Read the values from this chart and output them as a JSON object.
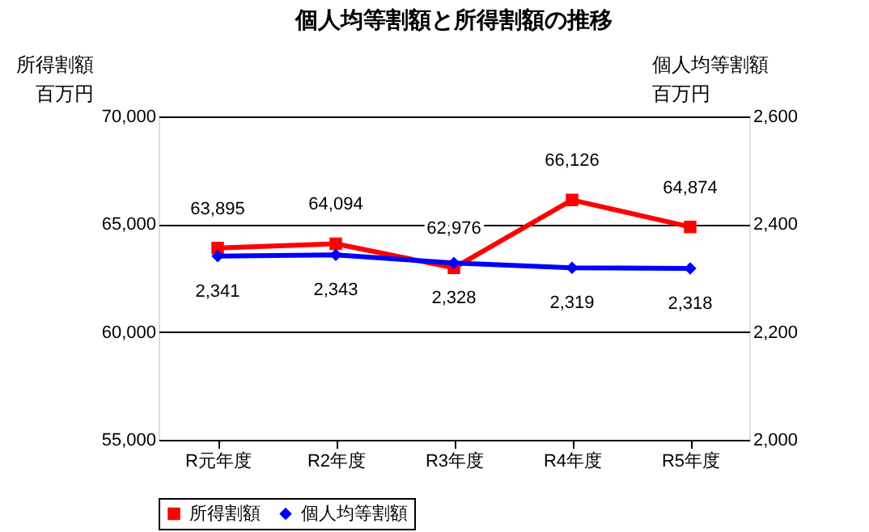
{
  "chart_data": {
    "type": "line",
    "title": "個人均等割額と所得割額の推移",
    "ylabel": "所得割額",
    "y2label": "個人均等割額",
    "annotations": [
      "百万円",
      "百万円"
    ],
    "categories": [
      "R元年度",
      "R2年度",
      "R3年度",
      "R4年度",
      "R5年度"
    ],
    "series": [
      {
        "name": "所得割額",
        "color": "#ff0000",
        "marker": "square",
        "values": [
          63895,
          64094,
          62976,
          66126,
          64874
        ],
        "value_labels": [
          "63,895",
          "64,094",
          "62,976",
          "66,126",
          "64,874"
        ]
      },
      {
        "name": "個人均等割額",
        "color": "#0000ff",
        "marker": "diamond",
        "axis": "y2",
        "values": [
          2341,
          2343,
          2328,
          2319,
          2318
        ],
        "value_labels": [
          "2,341",
          "2,343",
          "2,328",
          "2,319",
          "2,318"
        ]
      }
    ],
    "ylim": [
      55000,
      70000
    ],
    "yticks": [
      {
        "value": 55000,
        "label": "55,000"
      },
      {
        "value": 60000,
        "label": "60,000"
      },
      {
        "value": 65000,
        "label": "65,000"
      },
      {
        "value": 70000,
        "label": "70,000"
      }
    ],
    "y2lim": [
      2000,
      2600
    ],
    "y2ticks": [
      {
        "value": 2000,
        "label": "2,000"
      },
      {
        "value": 2200,
        "label": "2,200"
      },
      {
        "value": 2400,
        "label": "2,400"
      },
      {
        "value": 2600,
        "label": "2,600"
      }
    ],
    "grid": "y",
    "legend": "bottom",
    "line_style": "solid"
  }
}
